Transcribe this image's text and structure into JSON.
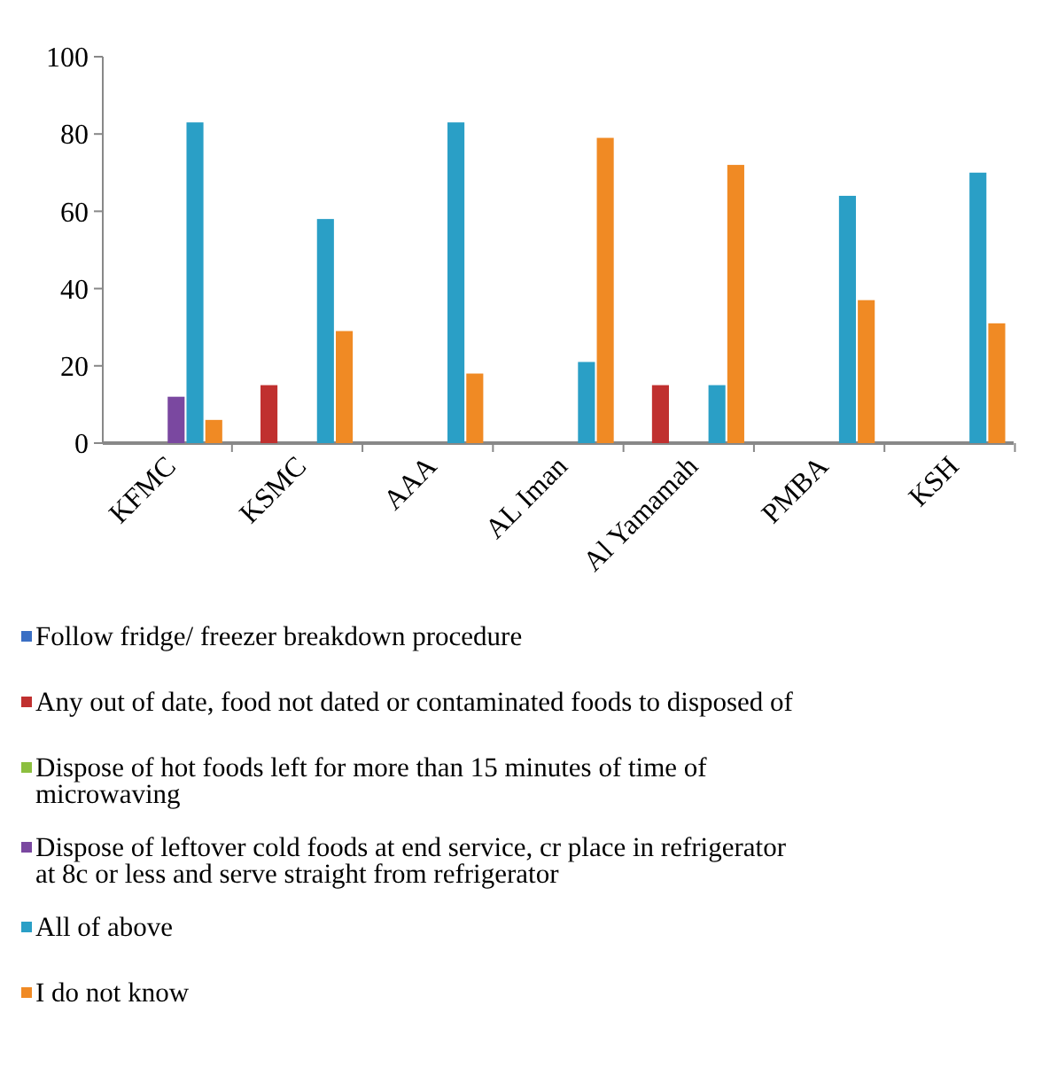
{
  "chart_data": {
    "type": "bar",
    "categories": [
      "KFMC",
      "KSMC",
      "AAA",
      "AL Iman",
      "Al Yamamah",
      "PMBA",
      "KSH"
    ],
    "series": [
      {
        "name": "Follow fridge/ freezer breakdown procedure",
        "color": "#3a6fc4",
        "values": [
          0,
          0,
          0,
          0,
          0,
          0,
          0
        ]
      },
      {
        "name": "Any out of date, food not dated or contaminated foods to disposed of",
        "color": "#c0302f",
        "values": [
          0,
          15,
          0,
          0,
          15,
          0,
          0
        ]
      },
      {
        "name": "Dispose of hot foods left for more than 15 minutes of time of microwaving",
        "color": "#8cbf3f",
        "values": [
          0,
          0,
          0,
          0,
          0,
          0,
          0
        ]
      },
      {
        "name": "Dispose of leftover cold foods at end service, cr place in refrigerator at 8c or less and serve straight from refrigerator",
        "color": "#7a48a0",
        "values": [
          12,
          0,
          0,
          0,
          0,
          0,
          0
        ]
      },
      {
        "name": "All of above",
        "color": "#2a9fc6",
        "values": [
          83,
          58,
          83,
          21,
          15,
          64,
          70
        ]
      },
      {
        "name": "I do not know",
        "color": "#f08a24",
        "values": [
          6,
          29,
          18,
          79,
          72,
          37,
          31
        ]
      }
    ],
    "ylim": [
      0,
      100
    ],
    "yticks": [
      0,
      20,
      40,
      60,
      80,
      100
    ],
    "grid": false,
    "legend": "bottom"
  }
}
